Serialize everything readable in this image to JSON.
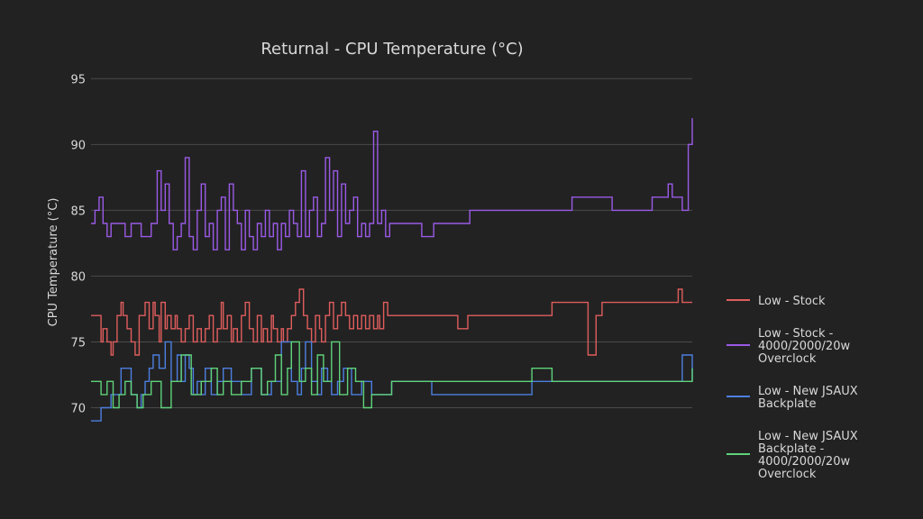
{
  "chart_data": {
    "type": "line",
    "title": "Returnal - CPU Temperature (°C)",
    "xlabel": "",
    "ylabel": "CPU Temperature (°C)",
    "ylim": [
      68.8,
      95.5
    ],
    "y_ticks": [
      70,
      75,
      80,
      85,
      90,
      95
    ],
    "x_range": [
      0,
      300
    ],
    "grid": "horizontal",
    "legend_position": "right",
    "colors": {
      "background": "#222222",
      "grid": "#4a4a4a",
      "text": "#d8d8d8"
    },
    "series": [
      {
        "name": "Low - Stock",
        "color": "#e05d5d",
        "legend_lines": [
          "Low - Stock"
        ],
        "x": [
          0,
          5,
          6,
          8,
          10,
          11,
          13,
          15,
          16,
          18,
          20,
          22,
          24,
          27,
          29,
          31,
          32,
          34,
          35,
          37,
          38,
          40,
          42,
          43,
          45,
          47,
          49,
          51,
          53,
          55,
          57,
          59,
          61,
          63,
          65,
          66,
          68,
          70,
          71,
          73,
          75,
          77,
          79,
          81,
          83,
          85,
          86,
          88,
          90,
          91,
          93,
          95,
          96,
          98,
          100,
          102,
          104,
          106,
          108,
          110,
          112,
          114,
          115,
          117,
          119,
          121,
          123,
          125,
          127,
          129,
          131,
          133,
          135,
          137,
          139,
          141,
          143,
          144,
          146,
          148,
          150,
          152,
          154,
          156,
          158,
          160,
          163,
          175,
          183,
          188,
          197,
          211,
          230,
          246,
          248,
          252,
          255,
          260,
          265,
          275,
          285,
          293,
          295,
          300
        ],
        "y": [
          77,
          75,
          76,
          75,
          74,
          75,
          77,
          78,
          77,
          76,
          75,
          74,
          77,
          78,
          76,
          78,
          77,
          75,
          78,
          76,
          77,
          76,
          77,
          76,
          75,
          76,
          77,
          75,
          76,
          75,
          76,
          77,
          75,
          76,
          78,
          76,
          77,
          75,
          76,
          75,
          77,
          78,
          76,
          75,
          77,
          75,
          76,
          75,
          77,
          76,
          75,
          76,
          75,
          76,
          77,
          78,
          79,
          77,
          76,
          75,
          77,
          76,
          75,
          77,
          78,
          76,
          77,
          78,
          77,
          76,
          77,
          76,
          77,
          76,
          77,
          76,
          77,
          76,
          78,
          77,
          77,
          77,
          77,
          77,
          77,
          77,
          77,
          77,
          76,
          77,
          77,
          77,
          78,
          78,
          74,
          77,
          78,
          78,
          78,
          78,
          78,
          79,
          78,
          78
        ]
      },
      {
        "name": "Low - Stock - 4000/2000/20w Overclock",
        "color": "#9a5ae6",
        "legend_lines": [
          "Low - Stock -",
          "4000/2000/20w",
          "Overclock"
        ],
        "x": [
          0,
          2,
          4,
          6,
          8,
          10,
          13,
          15,
          17,
          20,
          22,
          25,
          30,
          33,
          35,
          37,
          39,
          41,
          43,
          45,
          47,
          49,
          51,
          53,
          55,
          57,
          59,
          61,
          63,
          65,
          67,
          69,
          71,
          73,
          75,
          77,
          79,
          81,
          83,
          85,
          87,
          89,
          91,
          93,
          95,
          97,
          99,
          101,
          103,
          105,
          107,
          109,
          111,
          113,
          115,
          117,
          119,
          121,
          123,
          125,
          127,
          129,
          131,
          133,
          135,
          137,
          139,
          141,
          143,
          145,
          147,
          149,
          151,
          153,
          155,
          157,
          159,
          161,
          163,
          165,
          167,
          169,
          171,
          173,
          175,
          177,
          179,
          181,
          183,
          185,
          187,
          189,
          191,
          193,
          195,
          197,
          199,
          201,
          203,
          205,
          210,
          220,
          230,
          240,
          250,
          260,
          270,
          280,
          288,
          290,
          292,
          295,
          298,
          300
        ],
        "y": [
          84,
          85,
          86,
          84,
          83,
          84,
          84,
          84,
          83,
          84,
          84,
          83,
          84,
          88,
          85,
          87,
          84,
          82,
          83,
          84,
          89,
          83,
          82,
          85,
          87,
          83,
          84,
          82,
          85,
          86,
          82,
          87,
          85,
          84,
          82,
          85,
          83,
          82,
          84,
          83,
          85,
          83,
          84,
          82,
          84,
          83,
          85,
          84,
          83,
          88,
          83,
          85,
          86,
          83,
          84,
          89,
          85,
          88,
          83,
          87,
          84,
          85,
          86,
          83,
          84,
          83,
          84,
          91,
          84,
          85,
          83,
          84,
          84,
          84,
          84,
          84,
          84,
          84,
          84,
          83,
          83,
          83,
          84,
          84,
          84,
          84,
          84,
          84,
          84,
          84,
          84,
          85,
          85,
          85,
          85,
          85,
          85,
          85,
          85,
          85,
          85,
          85,
          85,
          86,
          86,
          85,
          85,
          86,
          87,
          86,
          86,
          85,
          90,
          92
        ]
      },
      {
        "name": "Low - New JSAUX Backplate",
        "color": "#4d7fe0",
        "legend_lines": [
          "Low - New JSAUX",
          "Backplate"
        ],
        "x": [
          0,
          5,
          10,
          15,
          20,
          23,
          25,
          27,
          29,
          31,
          34,
          37,
          40,
          43,
          45,
          47,
          49,
          51,
          53,
          55,
          57,
          60,
          63,
          66,
          70,
          75,
          80,
          85,
          90,
          95,
          100,
          103,
          105,
          107,
          110,
          113,
          115,
          118,
          120,
          123,
          126,
          130,
          135,
          140,
          150,
          160,
          170,
          180,
          190,
          200,
          210,
          220,
          230,
          240,
          250,
          260,
          270,
          280,
          285,
          290,
          295,
          300
        ],
        "y": [
          69,
          70,
          71,
          73,
          71,
          70,
          71,
          72,
          73,
          74,
          73,
          75,
          72,
          74,
          72,
          74,
          73,
          71,
          72,
          71,
          73,
          71,
          72,
          73,
          72,
          71,
          73,
          71,
          72,
          75,
          72,
          71,
          73,
          75,
          72,
          71,
          73,
          72,
          71,
          72,
          73,
          71,
          72,
          71,
          72,
          72,
          71,
          71,
          71,
          71,
          71,
          72,
          72,
          72,
          72,
          72,
          72,
          72,
          72,
          72,
          74,
          72
        ]
      },
      {
        "name": "Low - New JSAUX Backplate - 4000/2000/20w Overclock",
        "color": "#5fd37a",
        "legend_lines": [
          "Low - New JSAUX",
          "Backplate -",
          "4000/2000/20w",
          "Overclock"
        ],
        "x": [
          0,
          5,
          8,
          11,
          14,
          17,
          20,
          23,
          26,
          30,
          35,
          40,
          45,
          50,
          55,
          60,
          63,
          66,
          70,
          75,
          80,
          85,
          88,
          92,
          95,
          98,
          100,
          104,
          107,
          110,
          113,
          116,
          120,
          124,
          128,
          132,
          136,
          140,
          150,
          160,
          170,
          180,
          190,
          200,
          210,
          220,
          230,
          240,
          250,
          260,
          270,
          280,
          290,
          295,
          300
        ],
        "y": [
          72,
          71,
          72,
          70,
          71,
          72,
          71,
          70,
          71,
          72,
          70,
          72,
          74,
          71,
          72,
          73,
          71,
          72,
          71,
          72,
          73,
          71,
          72,
          74,
          71,
          73,
          75,
          72,
          73,
          71,
          74,
          72,
          75,
          71,
          73,
          72,
          70,
          71,
          72,
          72,
          72,
          72,
          72,
          72,
          72,
          73,
          72,
          72,
          72,
          72,
          72,
          72,
          72,
          72,
          73
        ]
      }
    ]
  }
}
